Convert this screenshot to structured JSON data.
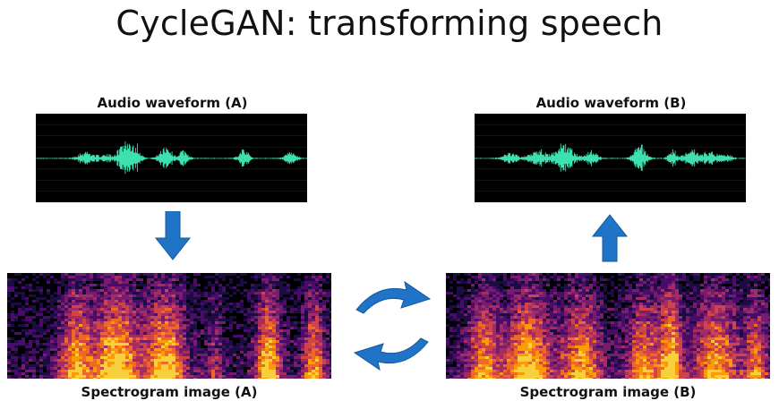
{
  "title": "CycleGAN: transforming speech",
  "panels": {
    "waveform_a_label": "Audio waveform (A)",
    "waveform_b_label": "Audio waveform (B)",
    "spectrogram_a_label": "Spectrogram image (A)",
    "spectrogram_b_label": "Spectrogram image (B)"
  },
  "colors": {
    "waveform": "#3fe0b0",
    "arrow": "#1f74c8",
    "panel_bg": "#000000"
  }
}
